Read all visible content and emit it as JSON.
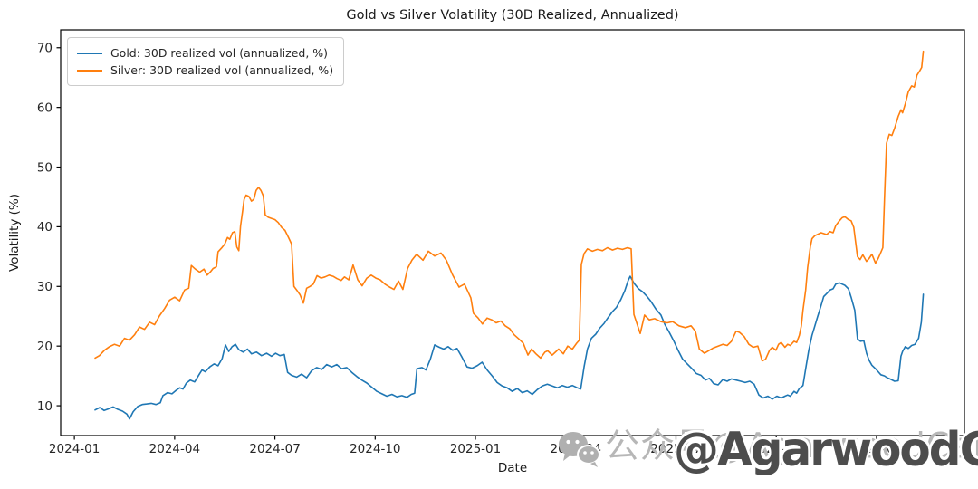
{
  "watermark": {
    "icon": "wechat-icon",
    "gray_text": "公众号@AgarwoodCapital",
    "bold_text": "@AgarwoodCapital",
    "gray_color": "#b7b7b7",
    "bold_color": "#4d4d4d"
  },
  "chart_data": {
    "type": "line",
    "title": "Gold vs Silver Volatility (30D Realized, Annualized)",
    "xlabel": "Date",
    "ylabel": "Volatility (%)",
    "x_unit": "months since 2024-01-01",
    "xlim": [
      -0.41,
      26.63
    ],
    "ylim": [
      5.0,
      73.0
    ],
    "grid": false,
    "legend_position": "upper left",
    "axis_color": "#000000",
    "tick_label_color": "#262626",
    "x_ticks": [
      {
        "pos": 0,
        "label": "2024-01"
      },
      {
        "pos": 3,
        "label": "2024-04"
      },
      {
        "pos": 6,
        "label": "2024-07"
      },
      {
        "pos": 9,
        "label": "2024-10"
      },
      {
        "pos": 12,
        "label": "2025-01"
      },
      {
        "pos": 15,
        "label": "2025-04"
      },
      {
        "pos": 18,
        "label": "2025-07"
      },
      {
        "pos": 21,
        "label": "2025-10"
      },
      {
        "pos": 24,
        "label": "2026-01"
      }
    ],
    "y_ticks": [
      10,
      20,
      30,
      40,
      50,
      60,
      70
    ],
    "series": [
      {
        "name": "Gold: 30D realized vol (annualized, %)",
        "color": "#1f77b4",
        "x": [
          0.62,
          0.76,
          0.89,
          1.03,
          1.16,
          1.3,
          1.44,
          1.57,
          1.65,
          1.76,
          1.9,
          2.03,
          2.17,
          2.3,
          2.44,
          2.57,
          2.65,
          2.79,
          2.92,
          3.05,
          3.15,
          3.25,
          3.35,
          3.47,
          3.6,
          3.74,
          3.82,
          3.92,
          4.05,
          4.18,
          4.3,
          4.42,
          4.52,
          4.62,
          4.72,
          4.82,
          4.92,
          5.05,
          5.18,
          5.3,
          5.45,
          5.6,
          5.75,
          5.9,
          6.02,
          6.15,
          6.28,
          6.38,
          6.5,
          6.65,
          6.8,
          6.95,
          7.1,
          7.25,
          7.4,
          7.55,
          7.7,
          7.85,
          8.0,
          8.15,
          8.3,
          8.45,
          8.6,
          8.75,
          8.9,
          9.05,
          9.2,
          9.35,
          9.5,
          9.65,
          9.8,
          9.95,
          10.08,
          10.18,
          10.25,
          10.4,
          10.52,
          10.65,
          10.78,
          10.92,
          11.05,
          11.18,
          11.32,
          11.45,
          11.6,
          11.75,
          11.9,
          12.05,
          12.2,
          12.35,
          12.5,
          12.65,
          12.8,
          12.95,
          13.1,
          13.25,
          13.4,
          13.55,
          13.7,
          13.85,
          14.0,
          14.15,
          14.3,
          14.45,
          14.6,
          14.75,
          14.9,
          15.05,
          15.15,
          15.25,
          15.35,
          15.47,
          15.6,
          15.72,
          15.85,
          15.97,
          16.1,
          16.22,
          16.35,
          16.47,
          16.57,
          16.63,
          16.75,
          16.88,
          17.0,
          17.12,
          17.25,
          17.4,
          17.55,
          17.67,
          17.8,
          17.93,
          18.07,
          18.2,
          18.34,
          18.48,
          18.61,
          18.75,
          18.88,
          19.0,
          19.13,
          19.26,
          19.4,
          19.53,
          19.66,
          19.8,
          19.94,
          20.07,
          20.21,
          20.34,
          20.48,
          20.61,
          20.75,
          20.88,
          21.02,
          21.15,
          21.26,
          21.34,
          21.42,
          21.53,
          21.61,
          21.69,
          21.8,
          21.88,
          21.97,
          22.07,
          22.15,
          22.23,
          22.34,
          22.42,
          22.51,
          22.61,
          22.7,
          22.78,
          22.89,
          22.97,
          23.05,
          23.16,
          23.24,
          23.35,
          23.43,
          23.52,
          23.62,
          23.7,
          23.78,
          23.86,
          23.97,
          24.05,
          24.13,
          24.24,
          24.32,
          24.4,
          24.54,
          24.65,
          24.73,
          24.78,
          24.86,
          24.95,
          25.05,
          25.15,
          25.26,
          25.34,
          25.4
        ],
        "y": [
          9.3,
          9.7,
          9.2,
          9.5,
          9.8,
          9.4,
          9.1,
          8.6,
          7.8,
          9.0,
          9.9,
          10.2,
          10.3,
          10.4,
          10.2,
          10.5,
          11.7,
          12.2,
          12.0,
          12.6,
          13.0,
          12.8,
          13.8,
          14.3,
          14.0,
          15.3,
          16.0,
          15.7,
          16.5,
          17.0,
          16.7,
          17.9,
          20.2,
          19.1,
          19.9,
          20.3,
          19.4,
          19.0,
          19.5,
          18.7,
          19.0,
          18.4,
          18.8,
          18.3,
          18.8,
          18.4,
          18.6,
          15.6,
          15.1,
          14.8,
          15.3,
          14.7,
          15.9,
          16.4,
          16.1,
          16.9,
          16.5,
          16.9,
          16.2,
          16.4,
          15.6,
          14.9,
          14.3,
          13.8,
          13.1,
          12.4,
          12.0,
          11.6,
          11.9,
          11.5,
          11.7,
          11.4,
          11.9,
          12.1,
          16.2,
          16.4,
          16.0,
          17.8,
          20.2,
          19.8,
          19.5,
          19.9,
          19.3,
          19.6,
          18.1,
          16.5,
          16.3,
          16.7,
          17.3,
          16.0,
          15.0,
          13.9,
          13.3,
          13.0,
          12.4,
          12.9,
          12.2,
          12.5,
          11.9,
          12.7,
          13.3,
          13.6,
          13.3,
          13.0,
          13.4,
          13.1,
          13.4,
          13.0,
          12.8,
          16.5,
          19.5,
          21.3,
          22.0,
          23.0,
          23.8,
          24.8,
          25.8,
          26.5,
          27.8,
          29.3,
          31.0,
          31.7,
          30.5,
          29.6,
          29.1,
          28.4,
          27.5,
          26.2,
          25.2,
          23.6,
          22.3,
          20.9,
          19.2,
          17.8,
          17.0,
          16.2,
          15.4,
          15.1,
          14.3,
          14.6,
          13.7,
          13.5,
          14.4,
          14.1,
          14.5,
          14.3,
          14.1,
          13.9,
          14.1,
          13.6,
          11.8,
          11.3,
          11.6,
          11.1,
          11.6,
          11.3,
          11.6,
          11.8,
          11.6,
          12.4,
          12.1,
          12.9,
          13.4,
          16.2,
          19.2,
          21.8,
          23.3,
          24.8,
          26.8,
          28.3,
          28.8,
          29.4,
          29.6,
          30.4,
          30.6,
          30.4,
          30.2,
          29.6,
          28.2,
          26.0,
          21.2,
          20.8,
          20.9,
          18.8,
          17.6,
          16.8,
          16.2,
          15.7,
          15.2,
          15.0,
          14.7,
          14.5,
          14.1,
          14.2,
          18.3,
          19.1,
          19.9,
          19.6,
          20.1,
          20.3,
          21.3,
          24.0,
          28.7
        ]
      },
      {
        "name": "Silver: 30D realized vol (annualized, %)",
        "color": "#ff7f0e",
        "x": [
          0.62,
          0.75,
          0.9,
          1.05,
          1.2,
          1.35,
          1.5,
          1.65,
          1.8,
          1.95,
          2.1,
          2.25,
          2.4,
          2.55,
          2.7,
          2.85,
          3.0,
          3.15,
          3.3,
          3.42,
          3.5,
          3.62,
          3.75,
          3.88,
          3.97,
          4.08,
          4.15,
          4.25,
          4.3,
          4.4,
          4.5,
          4.58,
          4.65,
          4.73,
          4.8,
          4.86,
          4.92,
          4.97,
          5.03,
          5.08,
          5.14,
          5.22,
          5.3,
          5.37,
          5.44,
          5.51,
          5.58,
          5.65,
          5.71,
          5.8,
          5.9,
          6.0,
          6.1,
          6.2,
          6.3,
          6.4,
          6.5,
          6.57,
          6.65,
          6.75,
          6.85,
          6.95,
          7.05,
          7.15,
          7.26,
          7.38,
          7.5,
          7.62,
          7.74,
          7.86,
          7.98,
          8.08,
          8.21,
          8.34,
          8.48,
          8.61,
          8.75,
          8.88,
          9.02,
          9.15,
          9.29,
          9.43,
          9.56,
          9.7,
          9.83,
          9.97,
          10.1,
          10.24,
          10.43,
          10.59,
          10.78,
          10.97,
          11.13,
          11.32,
          11.51,
          11.67,
          11.86,
          11.94,
          12.08,
          12.21,
          12.35,
          12.49,
          12.62,
          12.76,
          12.89,
          13.03,
          13.16,
          13.3,
          13.43,
          13.57,
          13.68,
          13.81,
          13.95,
          14.08,
          14.16,
          14.3,
          14.49,
          14.63,
          14.76,
          14.9,
          15.03,
          15.11,
          15.17,
          15.25,
          15.35,
          15.5,
          15.65,
          15.8,
          15.95,
          16.1,
          16.25,
          16.4,
          16.55,
          16.66,
          16.74,
          16.93,
          17.06,
          17.2,
          17.36,
          17.55,
          17.74,
          17.9,
          18.09,
          18.28,
          18.45,
          18.58,
          18.7,
          18.85,
          19.0,
          19.12,
          19.26,
          19.4,
          19.53,
          19.66,
          19.8,
          19.9,
          20.04,
          20.18,
          20.31,
          20.45,
          20.58,
          20.68,
          20.8,
          20.88,
          20.99,
          21.07,
          21.15,
          21.26,
          21.34,
          21.42,
          21.53,
          21.61,
          21.69,
          21.75,
          21.8,
          21.88,
          21.94,
          22.02,
          22.07,
          22.15,
          22.34,
          22.51,
          22.61,
          22.7,
          22.78,
          22.89,
          22.97,
          23.05,
          23.16,
          23.24,
          23.32,
          23.43,
          23.51,
          23.59,
          23.7,
          23.78,
          23.86,
          23.97,
          24.05,
          24.13,
          24.19,
          24.24,
          24.3,
          24.38,
          24.46,
          24.54,
          24.65,
          24.73,
          24.78,
          24.86,
          24.95,
          25.05,
          25.13,
          25.21,
          25.3,
          25.35,
          25.4
        ],
        "y": [
          18.0,
          18.4,
          19.3,
          19.9,
          20.3,
          20.0,
          21.3,
          21.0,
          21.9,
          23.2,
          22.8,
          24.0,
          23.6,
          25.1,
          26.3,
          27.7,
          28.2,
          27.6,
          29.4,
          29.7,
          33.5,
          32.9,
          32.4,
          32.9,
          31.9,
          32.5,
          33.0,
          33.3,
          35.8,
          36.4,
          37.1,
          38.2,
          37.9,
          39.0,
          39.2,
          36.6,
          36.0,
          40.1,
          42.5,
          44.6,
          45.3,
          45.1,
          44.3,
          44.6,
          46.1,
          46.6,
          46.1,
          45.2,
          42.0,
          41.6,
          41.4,
          41.2,
          40.7,
          39.9,
          39.4,
          38.3,
          37.1,
          30.0,
          29.4,
          28.6,
          27.2,
          29.7,
          30.0,
          30.4,
          31.8,
          31.4,
          31.6,
          31.9,
          31.7,
          31.3,
          31.0,
          31.6,
          31.1,
          33.6,
          31.1,
          30.1,
          31.4,
          31.9,
          31.4,
          31.1,
          30.4,
          29.9,
          29.5,
          30.9,
          29.5,
          33.0,
          34.4,
          35.4,
          34.4,
          35.9,
          35.1,
          35.6,
          34.4,
          31.9,
          29.9,
          30.4,
          28.1,
          25.5,
          24.7,
          23.7,
          24.7,
          24.4,
          23.9,
          24.2,
          23.4,
          22.9,
          21.9,
          21.2,
          20.5,
          18.5,
          19.5,
          18.7,
          18.0,
          19.0,
          19.2,
          18.5,
          19.5,
          18.7,
          20.0,
          19.5,
          20.5,
          21.0,
          33.7,
          35.5,
          36.3,
          35.9,
          36.2,
          36.0,
          36.5,
          36.1,
          36.4,
          36.2,
          36.5,
          36.3,
          25.3,
          22.1,
          25.2,
          24.4,
          24.6,
          24.1,
          23.9,
          24.1,
          23.4,
          23.1,
          23.4,
          22.5,
          19.5,
          18.8,
          19.3,
          19.7,
          20.0,
          20.3,
          20.1,
          20.8,
          22.5,
          22.3,
          21.6,
          20.3,
          19.8,
          20.0,
          17.5,
          17.8,
          19.3,
          19.8,
          19.3,
          20.3,
          20.6,
          19.8,
          20.3,
          20.1,
          20.8,
          20.6,
          21.8,
          23.4,
          26.0,
          29.4,
          33.2,
          36.7,
          38.0,
          38.5,
          39.0,
          38.7,
          39.2,
          39.0,
          40.2,
          41.0,
          41.5,
          41.7,
          41.2,
          41.0,
          39.9,
          35.0,
          34.5,
          35.3,
          34.2,
          34.7,
          35.4,
          33.9,
          34.7,
          35.7,
          36.5,
          45.0,
          54.0,
          55.5,
          55.3,
          56.5,
          58.5,
          59.6,
          59.1,
          60.6,
          62.6,
          63.6,
          63.4,
          65.4,
          66.2,
          66.7,
          69.4
        ]
      }
    ]
  }
}
